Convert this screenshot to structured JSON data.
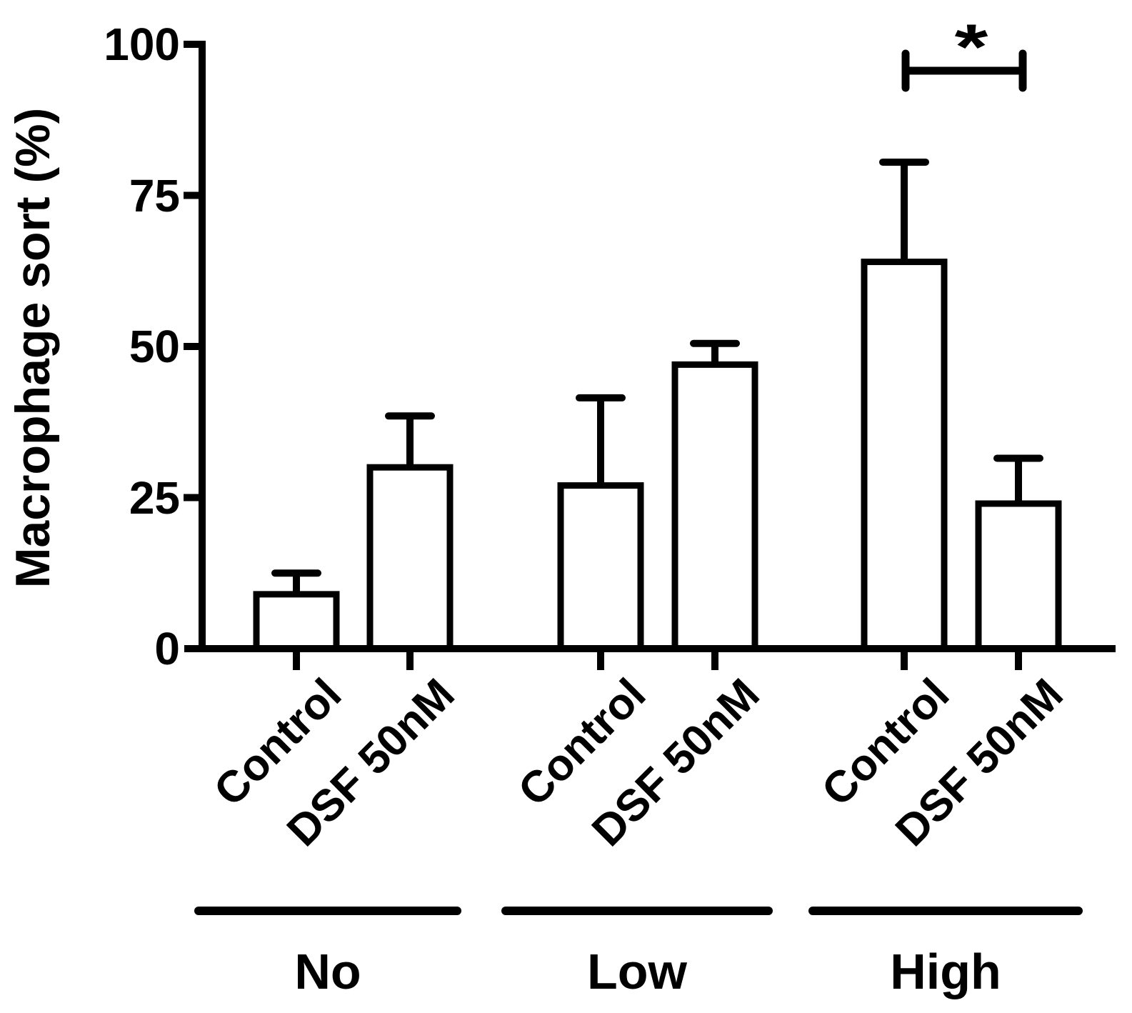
{
  "figure": {
    "background": "#ffffff",
    "ink_color": "#000000"
  },
  "chart_data": {
    "type": "bar",
    "title": "",
    "ylabel": "Macrophage sort (%)",
    "xlabel": "",
    "ylim": [
      0,
      100
    ],
    "yticks": [
      0,
      25,
      50,
      75,
      100
    ],
    "grid": false,
    "legend": "none",
    "bar_fill": "#ffffff",
    "bar_stroke": "#000000",
    "error_bars": "upper only, SD/SEM caps",
    "groups": [
      {
        "label": "No",
        "bars": [
          {
            "label": "Control",
            "value": 9,
            "error_upper": 3.5
          },
          {
            "label": "DSF 50nM",
            "value": 30,
            "error_upper": 8.5
          }
        ]
      },
      {
        "label": "Low",
        "bars": [
          {
            "label": "Control",
            "value": 27,
            "error_upper": 14.5
          },
          {
            "label": "DSF 50nM",
            "value": 47,
            "error_upper": 3.5
          }
        ]
      },
      {
        "label": "High",
        "bars": [
          {
            "label": "Control",
            "value": 64,
            "error_upper": 16.5
          },
          {
            "label": "DSF 50nM",
            "value": 24,
            "error_upper": 7.5
          }
        ]
      }
    ],
    "significance": {
      "label": "*",
      "group": "High",
      "between": [
        "Control",
        "DSF 50nM"
      ]
    }
  }
}
